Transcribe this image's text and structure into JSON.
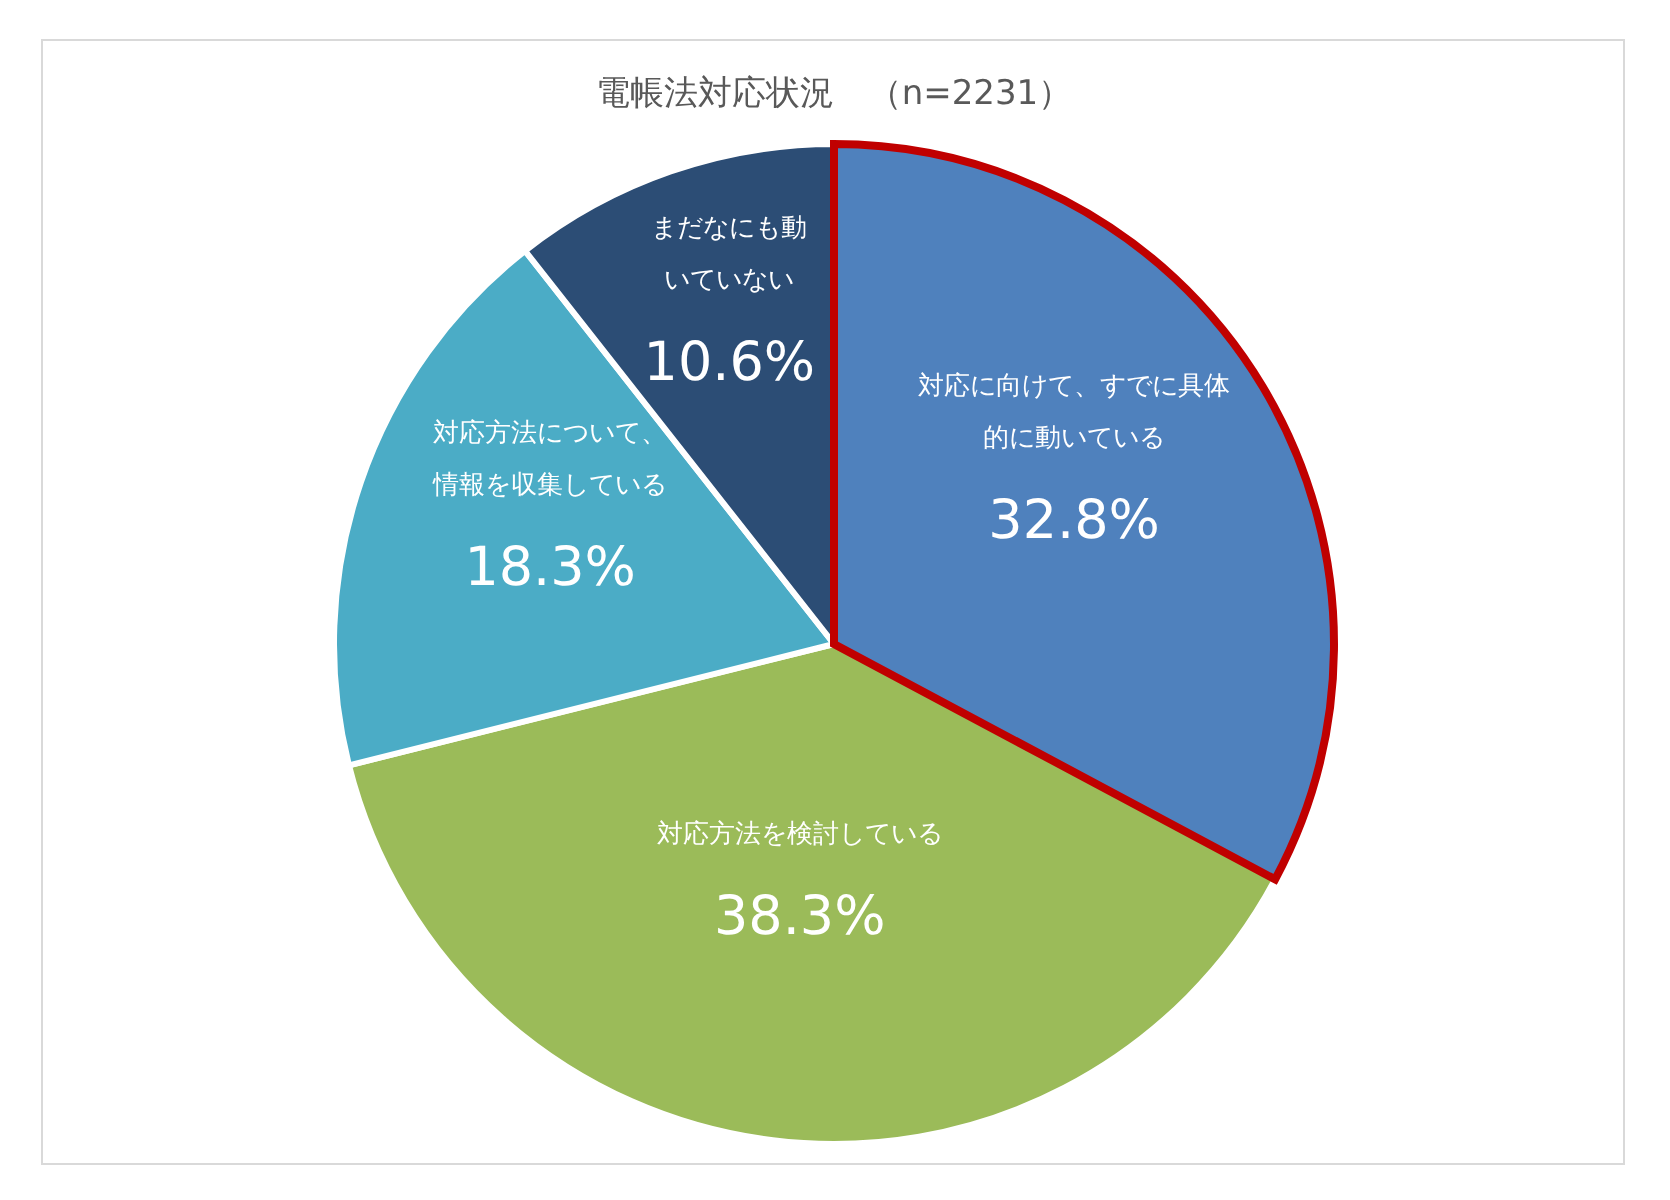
{
  "chart_data": {
    "type": "pie",
    "title": "電帳法対応状況　（n=2231）",
    "categories": [
      "対応に向けて、すでに具体的に動いている",
      "対応方法を検討している",
      "対応方法について、情報を収集している",
      "まだなにも動いていない"
    ],
    "values": [
      32.8,
      38.3,
      18.3,
      10.6
    ],
    "value_labels": [
      "32.8%",
      "38.3%",
      "18.3%",
      "10.6%"
    ],
    "colors": [
      "#4f81bd",
      "#9bbb59",
      "#4bacc6",
      "#2c4d75"
    ]
  }
}
